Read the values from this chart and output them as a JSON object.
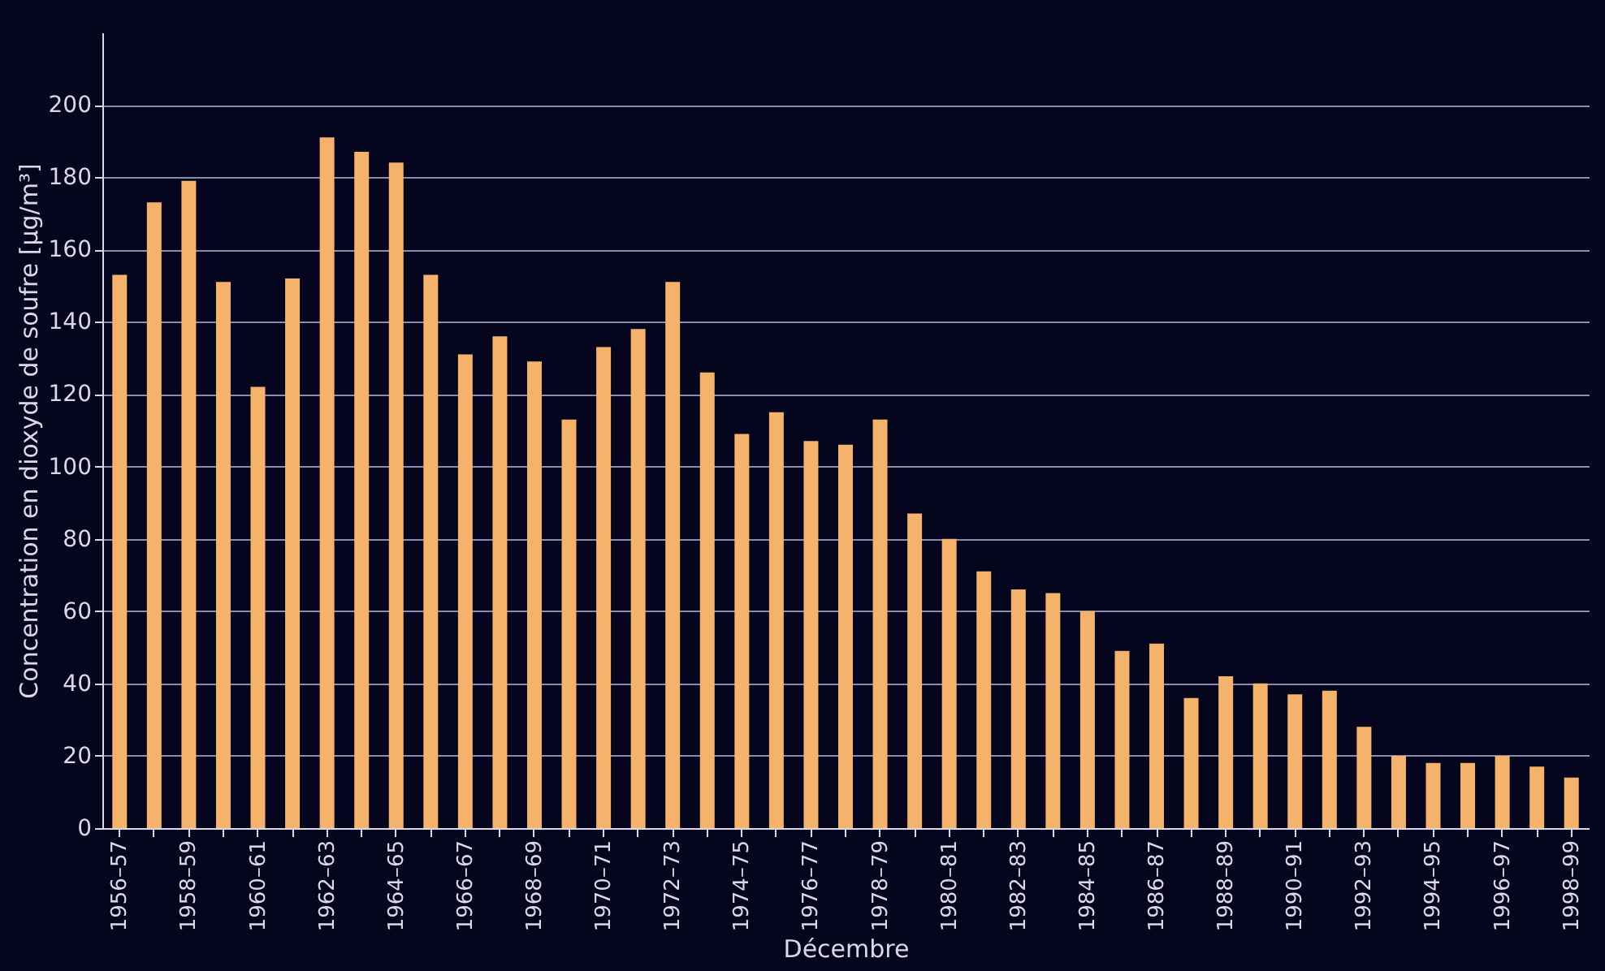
{
  "chart_data": {
    "type": "bar",
    "xlabel": "Décembre",
    "ylabel": "Concentration en dioxyde de soufre [µg/m³]",
    "categories": [
      "1956–57",
      null,
      "1958–59",
      null,
      "1960–61",
      null,
      "1962–63",
      null,
      "1964–65",
      null,
      "1966–67",
      null,
      "1968–69",
      null,
      "1970–71",
      null,
      "1972–73",
      null,
      "1974–75",
      null,
      "1976–77",
      null,
      "1978–79",
      null,
      "1980–81",
      null,
      "1982–83",
      null,
      "1984–85",
      null,
      "1986–87",
      null,
      "1988–89",
      null,
      "1990–91",
      null,
      "1992–93",
      null,
      "1994–95",
      null,
      "1996–97",
      null,
      "1998–99"
    ],
    "values": [
      153,
      173,
      179,
      151,
      122,
      152,
      191,
      187,
      184,
      153,
      131,
      136,
      129,
      113,
      133,
      138,
      151,
      126,
      109,
      115,
      107,
      106,
      113,
      87,
      80,
      71,
      66,
      65,
      60,
      49,
      51,
      36,
      42,
      40,
      37,
      38,
      28,
      20,
      18,
      18,
      20,
      17,
      14
    ],
    "color": "#f5b26b",
    "ylim": [
      0,
      220
    ],
    "yticks": [
      0,
      20,
      40,
      60,
      80,
      100,
      120,
      140,
      160,
      180,
      200
    ],
    "grid": "y"
  }
}
